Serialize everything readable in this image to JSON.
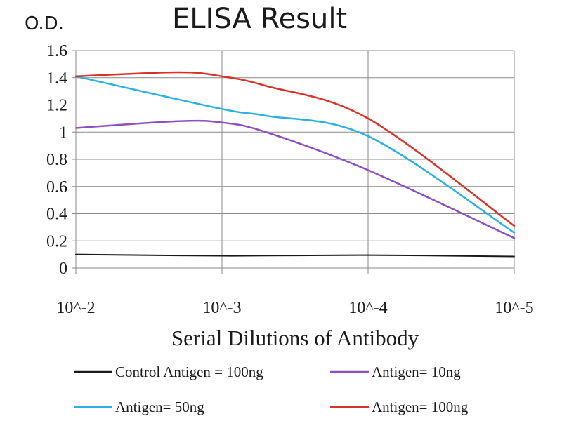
{
  "chart_data": {
    "type": "line",
    "title": "ELISA Result",
    "ylabel": "O.D.",
    "xlabel": "Serial Dilutions of Antibody",
    "categories": [
      "10^-2",
      "10^-3",
      "10^-4",
      "10^-5"
    ],
    "x": [
      0.01,
      0.001,
      0.0001,
      1e-05
    ],
    "x_scale": "log",
    "ylim": [
      0,
      1.6
    ],
    "yticks": [
      "0",
      "0.2",
      "0.4",
      "0.6",
      "0.8",
      "1",
      "1.2",
      "1.4",
      "1.6"
    ],
    "grid": true,
    "legend_position": "bottom",
    "series": [
      {
        "name": "Control Antigen = 100ng",
        "color": "#1a1a1a",
        "points": [
          [
            0.01,
            0.1
          ],
          [
            0.001,
            0.09
          ],
          [
            0.0001,
            0.095
          ],
          [
            1e-05,
            0.085
          ]
        ]
      },
      {
        "name": "Antigen= 10ng",
        "color": "#8c4fbf",
        "points": [
          [
            0.01,
            1.03
          ],
          [
            0.002,
            1.08
          ],
          [
            0.001,
            1.07
          ],
          [
            0.0005,
            1.0
          ],
          [
            0.0001,
            0.72
          ],
          [
            1e-05,
            0.22
          ]
        ]
      },
      {
        "name": "Antigen= 50ng",
        "color": "#2bb0e0",
        "points": [
          [
            0.01,
            1.41
          ],
          [
            0.001,
            1.17
          ],
          [
            0.0005,
            1.12
          ],
          [
            0.0001,
            0.97
          ],
          [
            1e-05,
            0.26
          ]
        ]
      },
      {
        "name": "Antigen= 100ng",
        "color": "#d9322a",
        "points": [
          [
            0.01,
            1.41
          ],
          [
            0.002,
            1.44
          ],
          [
            0.001,
            1.41
          ],
          [
            0.0005,
            1.34
          ],
          [
            0.0001,
            1.1
          ],
          [
            1e-05,
            0.31
          ]
        ]
      }
    ]
  }
}
